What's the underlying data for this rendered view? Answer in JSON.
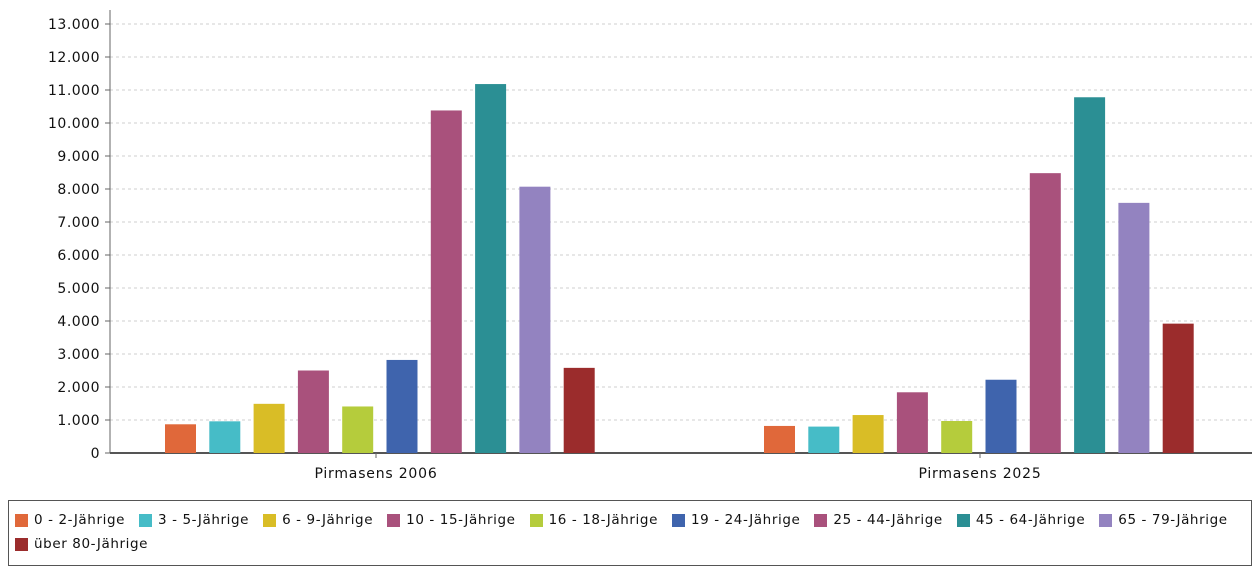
{
  "chart_data": {
    "type": "bar",
    "categories": [
      "Pirmasens 2006",
      "Pirmasens 2025"
    ],
    "series": [
      {
        "name": "0 - 2-Jährige",
        "color": "#e0683a",
        "values": [
          870,
          820
        ]
      },
      {
        "name": "3 - 5-Jährige",
        "color": "#46bcc7",
        "values": [
          960,
          800
        ]
      },
      {
        "name": "6 - 9-Jährige",
        "color": "#d9bd26",
        "values": [
          1490,
          1150
        ]
      },
      {
        "name": "10 - 15-Jährige",
        "color": "#a9517c",
        "values": [
          2500,
          1840
        ]
      },
      {
        "name": "16 - 18-Jährige",
        "color": "#b5cc3c",
        "values": [
          1410,
          970
        ]
      },
      {
        "name": "19 - 24-Jährige",
        "color": "#3f64ad",
        "values": [
          2820,
          2220
        ]
      },
      {
        "name": "25 - 44-Jährige",
        "color": "#a9517c",
        "values": [
          10380,
          8480
        ]
      },
      {
        "name": "45 - 64-Jährige",
        "color": "#2b8f94",
        "values": [
          11180,
          10780
        ]
      },
      {
        "name": "65 - 79-Jährige",
        "color": "#9383c0",
        "values": [
          8070,
          7580
        ]
      },
      {
        "name": "über 80-Jährige",
        "color": "#9b2c2c",
        "values": [
          2580,
          3920
        ]
      }
    ],
    "y_ticks": [
      "0",
      "1.000",
      "2.000",
      "3.000",
      "4.000",
      "5.000",
      "6.000",
      "7.000",
      "8.000",
      "9.000",
      "10.000",
      "11.000",
      "12.000",
      "13.000"
    ],
    "ylim": [
      0,
      13000
    ],
    "grid": true,
    "legend_position": "bottom"
  }
}
